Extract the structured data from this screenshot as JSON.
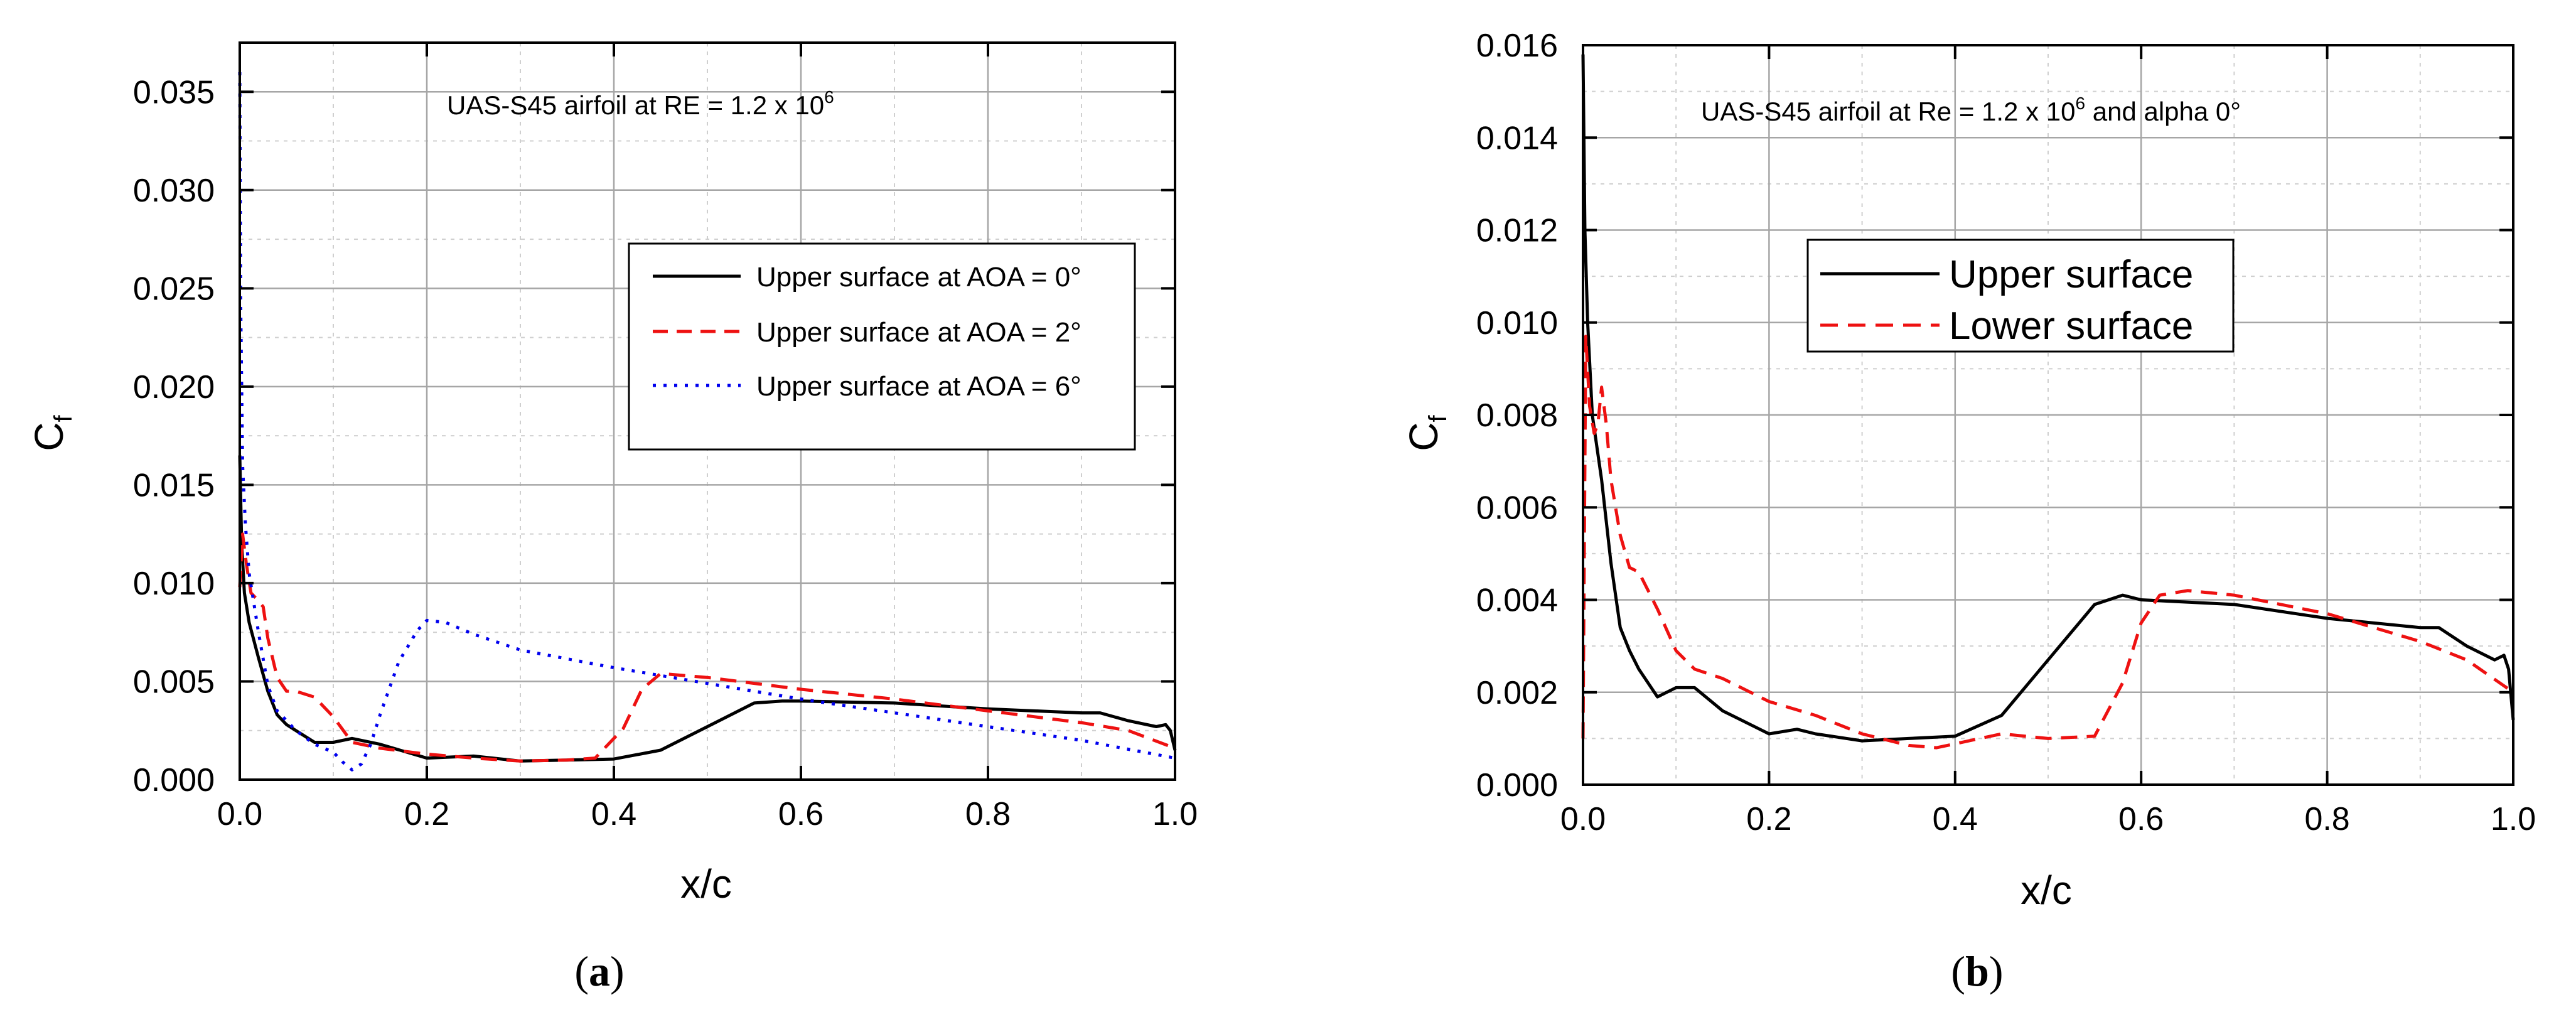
{
  "colors": {
    "upper0": "#000000",
    "upper2": "#ee1111",
    "upper6": "#0000ee",
    "grid": "#a6a6a6",
    "axis": "#000000"
  },
  "chart_data": [
    {
      "panel": "a",
      "caption_letter": "a",
      "type": "line",
      "title": "",
      "annotation": {
        "base": "UAS-S45 airfoil at RE = 1.2 x 10",
        "sup": "6"
      },
      "xlabel": "x/c",
      "ylabel": {
        "base": "C",
        "sub": "f"
      },
      "xlim": [
        0,
        1
      ],
      "ylim": [
        0,
        0.0375
      ],
      "xticks": [
        0.0,
        0.2,
        0.4,
        0.6,
        0.8,
        1.0
      ],
      "xtick_labels": [
        "0.0",
        "0.2",
        "0.4",
        "0.6",
        "0.8",
        "1.0"
      ],
      "yticks": [
        0,
        0.005,
        0.01,
        0.015,
        0.02,
        0.025,
        0.03,
        0.035
      ],
      "ytick_labels": [
        "0.000",
        "0.005",
        "0.010",
        "0.015",
        "0.020",
        "0.025",
        "0.030",
        "0.035"
      ],
      "grid": true,
      "legend_position": "upper-right",
      "series": [
        {
          "name": "Upper surface at AOA = 0°",
          "style": "solid",
          "color": "#000000",
          "x": [
            0,
            0.002,
            0.005,
            0.01,
            0.02,
            0.03,
            0.04,
            0.05,
            0.06,
            0.08,
            0.1,
            0.12,
            0.15,
            0.2,
            0.25,
            0.3,
            0.35,
            0.4,
            0.45,
            0.5,
            0.55,
            0.58,
            0.6,
            0.7,
            0.8,
            0.9,
            0.92,
            0.95,
            0.98,
            0.99,
            0.995,
            1.0
          ],
          "y": [
            0.0165,
            0.012,
            0.0095,
            0.008,
            0.0062,
            0.0045,
            0.0033,
            0.0028,
            0.0025,
            0.0019,
            0.0019,
            0.0021,
            0.0018,
            0.0011,
            0.0012,
            0.00095,
            0.001,
            0.00105,
            0.0015,
            0.0027,
            0.0039,
            0.004,
            0.004,
            0.0039,
            0.0036,
            0.0034,
            0.0034,
            0.003,
            0.0027,
            0.0028,
            0.0025,
            0.0015
          ]
        },
        {
          "name": "Upper surface at AOA = 2°",
          "style": "dashed",
          "color": "#ee1111",
          "x": [
            0,
            0.003,
            0.007,
            0.012,
            0.018,
            0.025,
            0.03,
            0.04,
            0.05,
            0.06,
            0.08,
            0.1,
            0.12,
            0.15,
            0.2,
            0.25,
            0.3,
            0.35,
            0.38,
            0.41,
            0.43,
            0.45,
            0.5,
            0.6,
            0.7,
            0.8,
            0.9,
            0.95,
            1.0
          ],
          "y": [
            0.0098,
            0.0125,
            0.011,
            0.0095,
            0.0092,
            0.0088,
            0.0072,
            0.0052,
            0.0045,
            0.0045,
            0.0042,
            0.0032,
            0.0019,
            0.0016,
            0.0013,
            0.0011,
            0.00095,
            0.001,
            0.0011,
            0.0026,
            0.0046,
            0.0054,
            0.0052,
            0.0046,
            0.0041,
            0.0035,
            0.0029,
            0.0025,
            0.0016
          ]
        },
        {
          "name": "Upper surface at AOA = 6°",
          "style": "dotted",
          "color": "#0000ee",
          "x": [
            0,
            0.001,
            0.003,
            0.006,
            0.01,
            0.02,
            0.03,
            0.04,
            0.06,
            0.08,
            0.1,
            0.11,
            0.12,
            0.13,
            0.14,
            0.15,
            0.17,
            0.19,
            0.2,
            0.22,
            0.25,
            0.3,
            0.4,
            0.5,
            0.6,
            0.7,
            0.8,
            0.9,
            1.0
          ],
          "y": [
            0.036,
            0.024,
            0.016,
            0.013,
            0.0105,
            0.0075,
            0.0048,
            0.0035,
            0.0025,
            0.0018,
            0.0014,
            0.0009,
            0.0005,
            0.0008,
            0.0018,
            0.0033,
            0.006,
            0.0076,
            0.0081,
            0.008,
            0.0074,
            0.0066,
            0.0057,
            0.0049,
            0.0041,
            0.0034,
            0.0027,
            0.002,
            0.0011
          ]
        }
      ]
    },
    {
      "panel": "b",
      "caption_letter": "b",
      "type": "line",
      "title": "",
      "annotation": {
        "base": "UAS-S45 airfoil at Re = 1.2 x 10",
        "sup": "6",
        "tail": " and alpha 0°"
      },
      "xlabel": "x/c",
      "ylabel": {
        "base": "C",
        "sub": "f"
      },
      "xlim": [
        0,
        1
      ],
      "ylim": [
        0,
        0.016
      ],
      "xticks": [
        0.0,
        0.2,
        0.4,
        0.6,
        0.8,
        1.0
      ],
      "xtick_labels": [
        "0.0",
        "0.2",
        "0.4",
        "0.6",
        "0.8",
        "1.0"
      ],
      "yticks": [
        0,
        0.002,
        0.004,
        0.006,
        0.008,
        0.01,
        0.012,
        0.014,
        0.016
      ],
      "ytick_labels": [
        "0.000",
        "0.002",
        "0.004",
        "0.006",
        "0.008",
        "0.010",
        "0.012",
        "0.014",
        "0.016"
      ],
      "grid": true,
      "legend_position": "upper-center",
      "series": [
        {
          "name": "Upper surface",
          "style": "solid",
          "color": "#000000",
          "x": [
            0,
            0.002,
            0.005,
            0.01,
            0.02,
            0.03,
            0.04,
            0.05,
            0.06,
            0.08,
            0.1,
            0.12,
            0.15,
            0.2,
            0.23,
            0.25,
            0.3,
            0.35,
            0.4,
            0.45,
            0.5,
            0.55,
            0.58,
            0.6,
            0.7,
            0.8,
            0.9,
            0.92,
            0.95,
            0.98,
            0.99,
            0.995,
            1.0
          ],
          "y": [
            0.0158,
            0.012,
            0.01,
            0.008,
            0.0066,
            0.0048,
            0.0034,
            0.0029,
            0.0025,
            0.0019,
            0.0021,
            0.0021,
            0.0016,
            0.0011,
            0.0012,
            0.0011,
            0.00095,
            0.001,
            0.00105,
            0.0015,
            0.0027,
            0.0039,
            0.0041,
            0.004,
            0.0039,
            0.0036,
            0.0034,
            0.0034,
            0.003,
            0.0027,
            0.0028,
            0.0025,
            0.0014
          ]
        },
        {
          "name": "Lower surface",
          "style": "dashed",
          "color": "#ee1111",
          "x": [
            0,
            0.003,
            0.007,
            0.012,
            0.016,
            0.02,
            0.025,
            0.03,
            0.04,
            0.05,
            0.06,
            0.08,
            0.1,
            0.12,
            0.15,
            0.2,
            0.25,
            0.3,
            0.35,
            0.38,
            0.45,
            0.5,
            0.55,
            0.58,
            0.6,
            0.62,
            0.65,
            0.7,
            0.8,
            0.9,
            0.95,
            1.0
          ],
          "y": [
            0.001,
            0.0097,
            0.0082,
            0.0076,
            0.0078,
            0.0086,
            0.0078,
            0.0066,
            0.0054,
            0.0047,
            0.0046,
            0.0038,
            0.0029,
            0.0025,
            0.0023,
            0.0018,
            0.0015,
            0.0011,
            0.00085,
            0.0008,
            0.0011,
            0.001,
            0.00105,
            0.0022,
            0.0035,
            0.0041,
            0.0042,
            0.0041,
            0.0037,
            0.0031,
            0.0027,
            0.002
          ]
        }
      ]
    }
  ]
}
